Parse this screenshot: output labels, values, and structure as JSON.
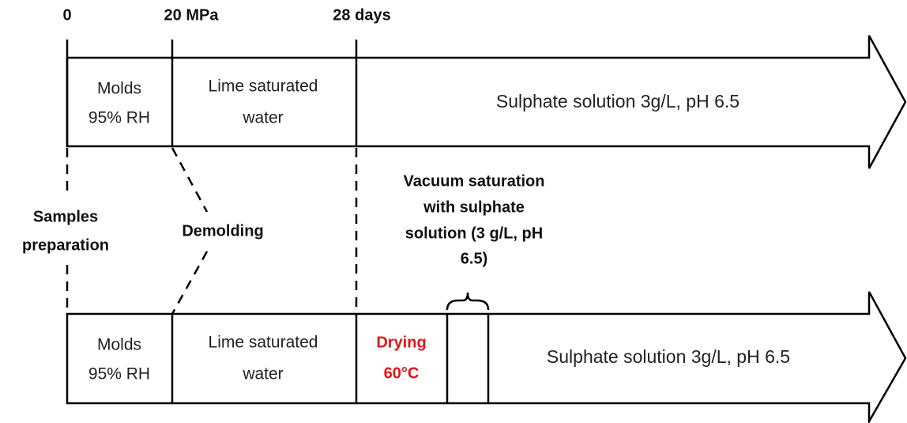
{
  "axis_labels": [
    "0",
    "20 MPa",
    "28 days"
  ],
  "top_row": {
    "cells": [
      [
        "Molds",
        "95% RH"
      ],
      [
        "Lime saturated",
        "water"
      ],
      [
        "Sulphate solution 3g/L, pH 6.5"
      ]
    ]
  },
  "annotations": {
    "samples": [
      "Samples",
      "preparation"
    ],
    "demolding": "Demolding",
    "vacuum": [
      "Vacuum saturation",
      "with sulphate",
      "solution (3 g/L, pH",
      "6.5)"
    ]
  },
  "bottom_row": {
    "cells": [
      [
        "Molds",
        "95% RH"
      ],
      [
        "Lime saturated",
        "water"
      ],
      [
        "Drying",
        "60°C"
      ],
      [
        "Sulphate solution 3g/L, pH 6.5"
      ]
    ]
  }
}
